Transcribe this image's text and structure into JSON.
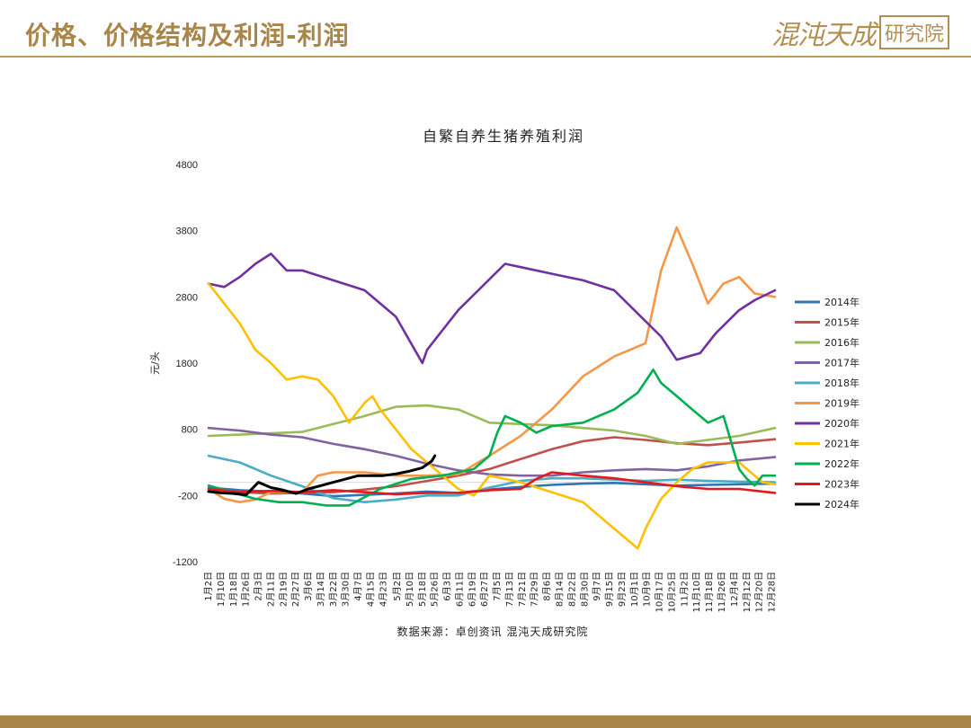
{
  "header": {
    "title": "价格、价格结构及利润-利润"
  },
  "logo": {
    "text": "混沌天成",
    "box_text": "研究院"
  },
  "colors": {
    "brand": "#a8864a"
  },
  "chart_data": {
    "type": "line",
    "title": "自繁自养生猪养殖利润",
    "ylabel": "元/头",
    "ylim": [
      -1200,
      4800
    ],
    "yticks": [
      -1200,
      -200,
      800,
      1800,
      2800,
      3800,
      4800
    ],
    "x_tick_labels": [
      "1月2日",
      "1月10日",
      "1月18日",
      "1月26日",
      "2月3日",
      "2月11日",
      "2月19日",
      "2月27日",
      "3月6日",
      "3月14日",
      "3月22日",
      "3月30日",
      "4月7日",
      "4月15日",
      "4月23日",
      "5月2日",
      "5月10日",
      "5月18日",
      "5月26日",
      "6月3日",
      "6月11日",
      "6月19日",
      "6月27日",
      "7月5日",
      "7月13日",
      "7月21日",
      "7月29日",
      "8月6日",
      "8月14日",
      "8月22日",
      "8月30日",
      "9月7日",
      "9月15日",
      "9月23日",
      "10月1日",
      "10月9日",
      "10月17日",
      "10月25日",
      "11月2日",
      "11月10日",
      "11月18日",
      "11月26日",
      "12月4日",
      "12月12日",
      "12月20日",
      "12月28日"
    ],
    "x_positions": [
      0,
      8,
      16,
      24,
      32,
      40,
      48,
      56,
      64,
      72,
      80,
      88,
      96,
      104,
      112,
      121,
      129,
      137,
      145,
      153,
      161,
      169,
      177,
      185,
      193,
      201,
      209,
      217,
      225,
      233,
      241,
      249,
      257,
      265,
      273,
      281,
      289,
      297,
      305,
      313,
      321,
      329,
      337,
      345,
      353,
      361
    ],
    "x_range": [
      0,
      363
    ],
    "grid": false,
    "legend_position": "right",
    "source": "数据来源：卓创资讯  混沌天成研究院",
    "series": [
      {
        "name": "2014年",
        "color": "#2e75b6",
        "x": [
          0,
          20,
          40,
          60,
          80,
          100,
          120,
          140,
          160,
          180,
          200,
          220,
          240,
          260,
          280,
          300,
          320,
          340,
          363
        ],
        "values": [
          -80,
          -120,
          -140,
          -170,
          -210,
          -190,
          -170,
          -140,
          -160,
          -110,
          -70,
          -40,
          -20,
          -10,
          -30,
          -50,
          -40,
          -30,
          -20
        ]
      },
      {
        "name": "2015年",
        "color": "#c0504d",
        "x": [
          0,
          20,
          40,
          60,
          80,
          100,
          120,
          140,
          160,
          180,
          200,
          220,
          240,
          260,
          280,
          300,
          320,
          340,
          363
        ],
        "values": [
          -100,
          -150,
          -170,
          -160,
          -150,
          -110,
          -60,
          20,
          100,
          200,
          350,
          500,
          620,
          680,
          640,
          590,
          560,
          600,
          650
        ]
      },
      {
        "name": "2016年",
        "color": "#9bbb59",
        "x": [
          0,
          20,
          40,
          60,
          80,
          100,
          120,
          140,
          160,
          180,
          200,
          220,
          240,
          260,
          280,
          300,
          320,
          340,
          363
        ],
        "values": [
          700,
          720,
          740,
          760,
          880,
          1000,
          1140,
          1160,
          1100,
          900,
          880,
          860,
          820,
          780,
          700,
          580,
          640,
          700,
          820
        ]
      },
      {
        "name": "2017年",
        "color": "#8064a2",
        "x": [
          0,
          20,
          40,
          60,
          80,
          100,
          120,
          140,
          160,
          180,
          200,
          220,
          240,
          260,
          280,
          300,
          320,
          340,
          363
        ],
        "values": [
          820,
          780,
          720,
          680,
          580,
          500,
          400,
          280,
          180,
          120,
          100,
          100,
          150,
          180,
          200,
          180,
          240,
          330,
          380
        ]
      },
      {
        "name": "2018年",
        "color": "#4bacc6",
        "x": [
          0,
          20,
          40,
          60,
          80,
          100,
          120,
          140,
          160,
          180,
          200,
          220,
          240,
          260,
          280,
          300,
          320,
          340,
          363
        ],
        "values": [
          400,
          300,
          100,
          -60,
          -240,
          -300,
          -260,
          -200,
          -200,
          -80,
          20,
          60,
          60,
          40,
          20,
          40,
          20,
          10,
          0
        ]
      },
      {
        "name": "2019年",
        "color": "#f79646",
        "x": [
          0,
          10,
          20,
          30,
          40,
          60,
          70,
          80,
          100,
          120,
          140,
          160,
          180,
          200,
          220,
          240,
          260,
          280,
          290,
          300,
          310,
          320,
          330,
          340,
          350,
          363
        ],
        "values": [
          -100,
          -250,
          -300,
          -260,
          -150,
          -150,
          100,
          150,
          150,
          100,
          100,
          120,
          400,
          700,
          1100,
          1600,
          1900,
          2100,
          3200,
          3850,
          3300,
          2700,
          3000,
          3100,
          2850,
          2800
        ]
      },
      {
        "name": "2020年",
        "color": "#7030a0",
        "x": [
          0,
          10,
          20,
          30,
          40,
          50,
          60,
          80,
          100,
          120,
          137,
          140,
          150,
          160,
          175,
          190,
          200,
          220,
          240,
          260,
          275,
          290,
          300,
          315,
          325,
          340,
          350,
          363
        ],
        "values": [
          3000,
          2950,
          3100,
          3300,
          3450,
          3200,
          3200,
          3050,
          2900,
          2500,
          1800,
          2000,
          2300,
          2600,
          2950,
          3300,
          3250,
          3150,
          3050,
          2900,
          2550,
          2200,
          1850,
          1950,
          2250,
          2600,
          2750,
          2900
        ]
      },
      {
        "name": "2021年",
        "color": "#ffc000",
        "x": [
          0,
          10,
          20,
          30,
          40,
          50,
          60,
          70,
          80,
          90,
          100,
          105,
          110,
          120,
          130,
          140,
          150,
          160,
          170,
          180,
          200,
          220,
          240,
          260,
          275,
          280,
          290,
          300,
          310,
          320,
          340,
          355,
          363
        ],
        "values": [
          3000,
          2700,
          2400,
          2000,
          1800,
          1550,
          1600,
          1550,
          1300,
          900,
          1200,
          1300,
          1100,
          800,
          500,
          300,
          100,
          -100,
          -200,
          100,
          0,
          -150,
          -300,
          -700,
          -1000,
          -700,
          -250,
          0,
          200,
          300,
          300,
          0,
          -30
        ]
      },
      {
        "name": "2022年",
        "color": "#00b050",
        "x": [
          0,
          15,
          30,
          45,
          60,
          75,
          90,
          110,
          130,
          150,
          170,
          180,
          185,
          190,
          200,
          210,
          220,
          240,
          260,
          275,
          285,
          290,
          300,
          310,
          320,
          330,
          335,
          340,
          345,
          350,
          355,
          363
        ],
        "values": [
          -50,
          -150,
          -250,
          -300,
          -300,
          -350,
          -350,
          -100,
          50,
          100,
          200,
          400,
          750,
          1000,
          900,
          750,
          850,
          900,
          1100,
          1350,
          1700,
          1500,
          1300,
          1100,
          900,
          1000,
          600,
          200,
          50,
          -50,
          100,
          100
        ]
      },
      {
        "name": "2023年",
        "color": "#e31a1c",
        "x": [
          0,
          20,
          40,
          60,
          80,
          100,
          120,
          140,
          160,
          180,
          200,
          210,
          220,
          240,
          260,
          280,
          300,
          320,
          340,
          355,
          363
        ],
        "values": [
          -100,
          -150,
          -130,
          -150,
          -120,
          -150,
          -180,
          -160,
          -160,
          -120,
          -100,
          50,
          150,
          100,
          60,
          0,
          -60,
          -100,
          -100,
          -140,
          -160
        ]
      },
      {
        "name": "2024年",
        "color": "#000000",
        "x": [
          0,
          8,
          16,
          24,
          32,
          40,
          48,
          56,
          64,
          72,
          80,
          88,
          96,
          104,
          112,
          121,
          129,
          137,
          143,
          145
        ],
        "values": [
          -140,
          -160,
          -170,
          -190,
          0,
          -80,
          -120,
          -170,
          -100,
          -50,
          0,
          50,
          100,
          100,
          100,
          130,
          170,
          220,
          320,
          400
        ]
      }
    ]
  }
}
